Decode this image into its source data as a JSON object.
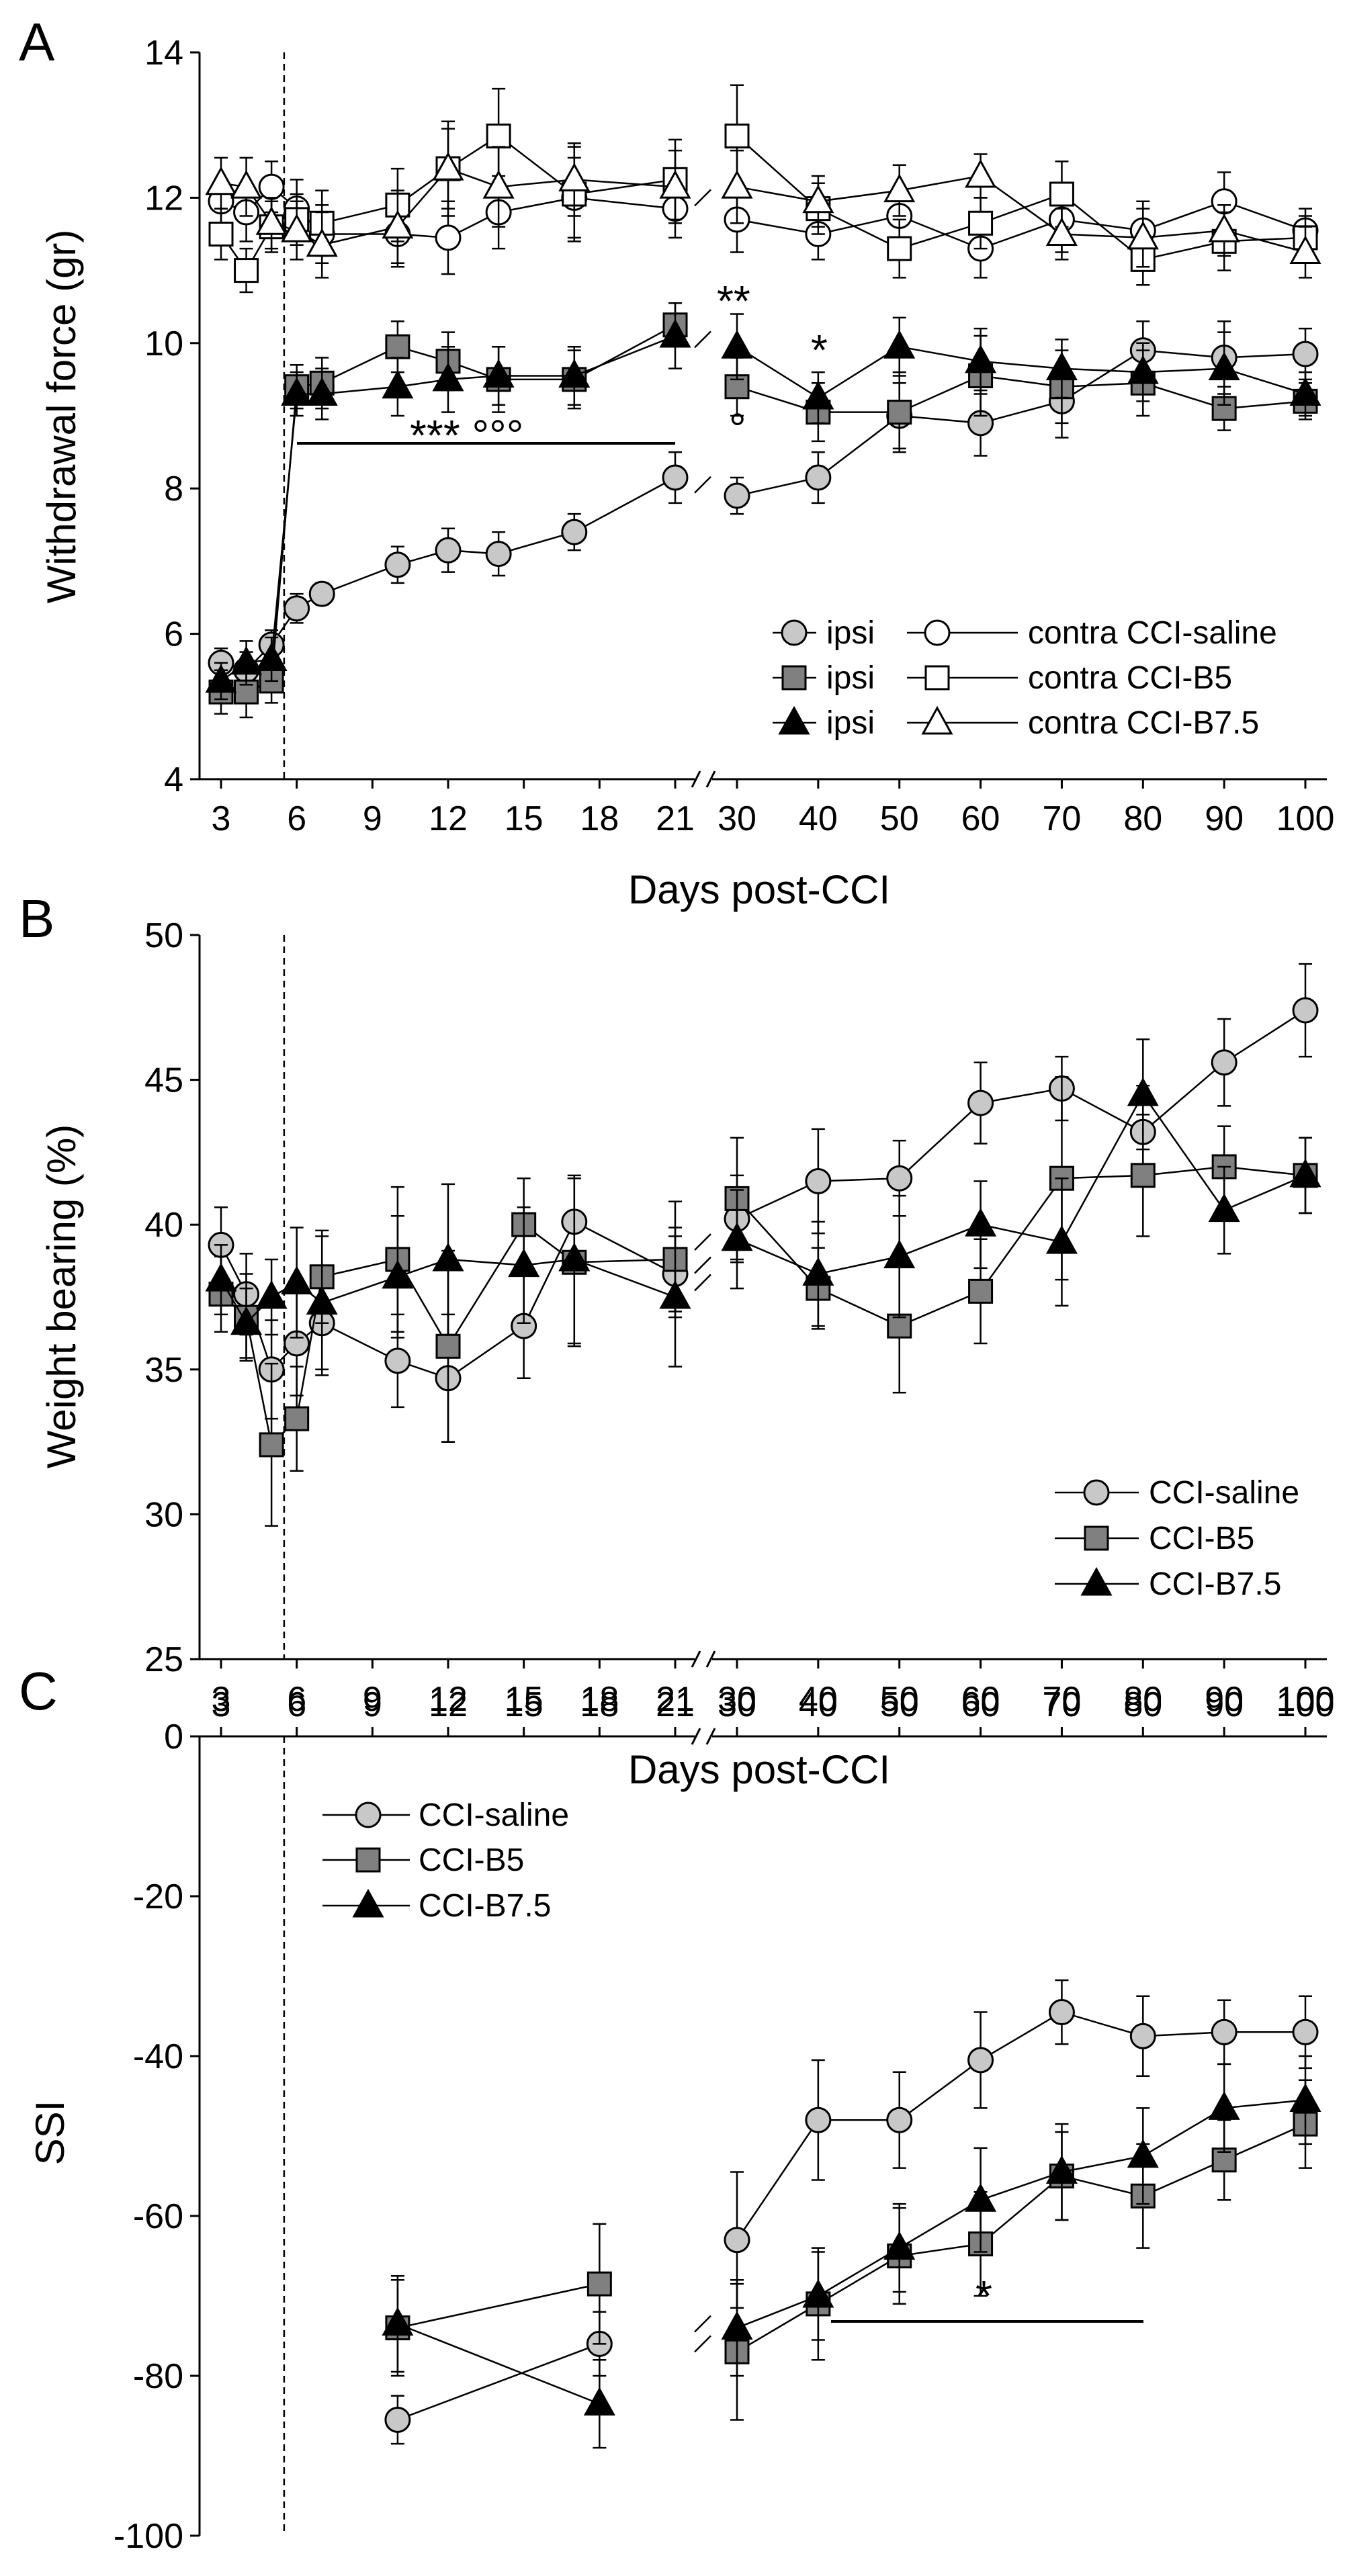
{
  "chart_data": [
    {
      "panel": "A",
      "type": "line",
      "ylabel": "Withdrawal force (gr)",
      "xlabel": "Days post-CCI",
      "ylim": [
        4,
        14
      ],
      "yticks": [
        4,
        6,
        8,
        10,
        12,
        14
      ],
      "xticks": [
        "3",
        "6",
        "9",
        "12",
        "15",
        "18",
        "21",
        "30",
        "40",
        "50",
        "60",
        "70",
        "80",
        "90",
        "100"
      ],
      "markers": {
        "ipsi_saline": "circle",
        "ipsi_b5": "square",
        "ipsi_b75": "triangle",
        "contra_saline": "circle",
        "contra_b5": "square",
        "contra_b75": "triangle"
      },
      "colors": {
        "saline": "#c8c8c8",
        "b5": "#808080",
        "b75": "#000000",
        "contra": "#ffffff"
      },
      "series": [
        {
          "key": "ipsi_saline",
          "x": [
            3,
            4,
            5,
            6,
            7,
            10,
            12,
            14,
            17,
            21,
            30,
            40,
            50,
            60,
            70,
            80,
            90,
            100
          ],
          "y": [
            5.6,
            5.5,
            5.85,
            6.35,
            6.55,
            6.95,
            7.15,
            7.1,
            7.4,
            8.15,
            7.9,
            8.15,
            9.0,
            8.9,
            9.2,
            9.9,
            9.8,
            9.85
          ],
          "err": [
            0.2,
            0.25,
            0.2,
            0.2,
            0.15,
            0.25,
            0.3,
            0.3,
            0.25,
            0.35,
            0.25,
            0.35,
            0.45,
            0.45,
            0.5,
            0.4,
            0.5,
            0.35
          ]
        },
        {
          "key": "ipsi_b5",
          "x": [
            3,
            4,
            5,
            6,
            7,
            10,
            12,
            14,
            17,
            21,
            30,
            40,
            50,
            60,
            70,
            80,
            90,
            100
          ],
          "y": [
            5.2,
            5.2,
            5.35,
            9.4,
            9.45,
            9.95,
            9.75,
            9.5,
            9.5,
            10.25,
            9.4,
            9.05,
            9.05,
            9.55,
            9.4,
            9.45,
            9.1,
            9.2
          ],
          "err": [
            0.3,
            0.35,
            0.3,
            0.3,
            0.35,
            0.35,
            0.4,
            0.45,
            0.4,
            0.3,
            0.4,
            0.4,
            0.55,
            0.55,
            0.5,
            0.45,
            0.3,
            0.25
          ]
        },
        {
          "key": "ipsi_b75",
          "x": [
            3,
            4,
            5,
            6,
            7,
            10,
            12,
            14,
            17,
            21,
            30,
            40,
            50,
            60,
            70,
            80,
            90,
            100
          ],
          "y": [
            5.35,
            5.6,
            5.65,
            9.3,
            9.3,
            9.4,
            9.5,
            9.55,
            9.55,
            10.1,
            9.95,
            9.25,
            9.95,
            9.75,
            9.65,
            9.6,
            9.65,
            9.3
          ],
          "err": [
            0.25,
            0.3,
            0.3,
            0.3,
            0.35,
            0.4,
            0.45,
            0.4,
            0.4,
            0.45,
            0.45,
            0.35,
            0.4,
            0.45,
            0.4,
            0.4,
            0.5,
            0.3
          ]
        },
        {
          "key": "contra_saline",
          "x": [
            3,
            4,
            5,
            6,
            7,
            10,
            12,
            14,
            17,
            21,
            30,
            40,
            50,
            60,
            70,
            80,
            90,
            100
          ],
          "y": [
            11.95,
            11.8,
            12.15,
            11.85,
            11.5,
            11.5,
            11.45,
            11.8,
            12.0,
            11.85,
            11.7,
            11.5,
            11.75,
            11.3,
            11.7,
            11.55,
            11.95,
            11.55
          ],
          "err": [
            0.3,
            0.4,
            0.35,
            0.4,
            0.4,
            0.45,
            0.5,
            0.5,
            0.55,
            0.4,
            0.45,
            0.35,
            0.4,
            0.4,
            0.45,
            0.4,
            0.4,
            0.3
          ]
        },
        {
          "key": "contra_b5",
          "x": [
            3,
            4,
            5,
            6,
            7,
            10,
            12,
            14,
            17,
            21,
            30,
            40,
            50,
            60,
            70,
            80,
            90,
            100
          ],
          "y": [
            11.5,
            11.0,
            11.6,
            11.7,
            11.65,
            11.9,
            12.4,
            12.85,
            12.05,
            12.25,
            12.85,
            11.85,
            11.3,
            11.65,
            12.05,
            11.15,
            11.4,
            11.45
          ],
          "err": [
            0.35,
            0.3,
            0.35,
            0.35,
            0.45,
            0.5,
            0.65,
            0.65,
            0.65,
            0.55,
            0.7,
            0.35,
            0.4,
            0.35,
            0.45,
            0.35,
            0.4,
            0.3
          ]
        },
        {
          "key": "contra_b75",
          "x": [
            3,
            4,
            5,
            6,
            7,
            10,
            12,
            14,
            17,
            21,
            30,
            40,
            50,
            60,
            70,
            80,
            90,
            100
          ],
          "y": [
            12.2,
            12.15,
            11.65,
            11.55,
            11.35,
            11.6,
            12.4,
            12.15,
            12.25,
            12.15,
            12.15,
            11.95,
            12.1,
            12.3,
            11.5,
            11.45,
            11.55,
            11.25
          ],
          "err": [
            0.35,
            0.4,
            0.35,
            0.4,
            0.45,
            0.5,
            0.55,
            0.55,
            0.5,
            0.5,
            0.5,
            0.35,
            0.35,
            0.3,
            0.35,
            0.4,
            0.35,
            0.35
          ]
        }
      ],
      "legend": [
        {
          "ipsi": "ipsi",
          "contra": "contra CCI-saline"
        },
        {
          "ipsi": "ipsi",
          "contra": "contra CCI-B5"
        },
        {
          "ipsi": "ipsi",
          "contra": "contra CCI-B7.5"
        }
      ],
      "annotations": {
        "long_bar": "*** °°°",
        "small_circle": "°",
        "double_star": "**",
        "single_star": "*"
      }
    },
    {
      "panel": "B",
      "type": "line",
      "ylabel": "Weight bearing (%)",
      "xlabel": "Days post-CCI",
      "ylim": [
        25,
        50
      ],
      "yticks": [
        25,
        30,
        35,
        40,
        45,
        50
      ],
      "xticks": [
        "3",
        "6",
        "9",
        "12",
        "15",
        "18",
        "21",
        "30",
        "40",
        "50",
        "60",
        "70",
        "80",
        "90",
        "100"
      ],
      "series": [
        {
          "key": "saline",
          "x": [
            3,
            4,
            5,
            6,
            7,
            10,
            12,
            15,
            17,
            21,
            30,
            40,
            50,
            60,
            70,
            80,
            90,
            100
          ],
          "y": [
            39.3,
            37.6,
            35.0,
            35.9,
            36.6,
            35.3,
            34.7,
            36.5,
            40.1,
            38.3,
            40.2,
            41.5,
            41.6,
            44.2,
            44.7,
            43.2,
            45.6,
            47.4
          ],
          "err": [
            1.3,
            1.4,
            1.7,
            1.8,
            1.8,
            1.6,
            2.2,
            1.8,
            1.5,
            1.3,
            1.5,
            1.8,
            1.3,
            1.4,
            1.1,
            1.6,
            1.5,
            1.6
          ]
        },
        {
          "key": "b5",
          "x": [
            3,
            4,
            5,
            6,
            7,
            10,
            12,
            15,
            17,
            21,
            30,
            40,
            50,
            60,
            70,
            80,
            90,
            100
          ],
          "y": [
            37.6,
            36.8,
            32.4,
            33.3,
            38.2,
            38.8,
            35.8,
            40.0,
            38.7,
            38.8,
            40.9,
            37.8,
            36.5,
            37.7,
            41.6,
            41.7,
            42.0,
            41.7
          ],
          "err": [
            1.3,
            1.5,
            2.8,
            1.8,
            1.6,
            2.5,
            3.3,
            1.6,
            2.9,
            2.0,
            2.1,
            1.4,
            2.3,
            1.8,
            3.5,
            2.1,
            1.4,
            1.3
          ]
        },
        {
          "key": "b75",
          "x": [
            3,
            4,
            5,
            6,
            7,
            10,
            12,
            15,
            17,
            21,
            30,
            40,
            50,
            60,
            70,
            80,
            90,
            100
          ],
          "y": [
            38.1,
            36.6,
            37.5,
            38.0,
            37.3,
            38.2,
            38.8,
            38.6,
            38.8,
            37.5,
            39.5,
            38.3,
            38.9,
            40.0,
            39.4,
            44.5,
            40.5,
            41.7
          ],
          "err": [
            1.2,
            1.2,
            1.3,
            1.9,
            2.3,
            2.1,
            2.6,
            2.0,
            2.9,
            2.4,
            1.7,
            1.8,
            2.1,
            1.5,
            2.2,
            1.9,
            1.5,
            1.3
          ]
        }
      ],
      "legend": [
        "CCI-saline",
        "CCI-B5",
        "CCI-B7.5"
      ]
    },
    {
      "panel": "C",
      "type": "line",
      "ylabel": "SSI",
      "ylim": [
        -100,
        0
      ],
      "yticks": [
        0,
        -20,
        -40,
        -60,
        -80,
        -100
      ],
      "xticks": [
        "3",
        "6",
        "9",
        "12",
        "15",
        "18",
        "21",
        "30",
        "40",
        "50",
        "60",
        "70",
        "80",
        "90",
        "100"
      ],
      "series": [
        {
          "key": "saline",
          "x": [
            10,
            18,
            30,
            40,
            50,
            60,
            70,
            80,
            90,
            100
          ],
          "y": [
            -85.5,
            -76.0,
            -63.0,
            -48.0,
            -48.0,
            -40.5,
            -34.5,
            -37.5,
            -37.0,
            -37.0
          ],
          "err": [
            3.0,
            4.0,
            8.5,
            7.5,
            6.0,
            6.0,
            4.0,
            5.0,
            4.0,
            4.5
          ]
        },
        {
          "key": "b5",
          "x": [
            10,
            18,
            30,
            40,
            50,
            60,
            70,
            80,
            90,
            100
          ],
          "y": [
            -74.0,
            -68.5,
            -77.0,
            -71.0,
            -65.0,
            -63.5,
            -55.0,
            -57.5,
            -53.0,
            -48.5
          ],
          "err": [
            6.0,
            7.5,
            8.5,
            7.0,
            6.0,
            6.5,
            5.5,
            6.5,
            5.0,
            5.5
          ]
        },
        {
          "key": "b75",
          "x": [
            10,
            18,
            30,
            40,
            50,
            60,
            70,
            80,
            90,
            100
          ],
          "y": [
            -73.5,
            -83.5,
            -74.0,
            -70.0,
            -64.0,
            -58.0,
            -54.5,
            -52.5,
            -46.5,
            -45.5
          ],
          "err": [
            6.0,
            5.5,
            6.0,
            5.5,
            5.5,
            6.5,
            6.0,
            6.0,
            5.5,
            5.5
          ]
        }
      ],
      "legend": [
        "CCI-saline",
        "CCI-B5",
        "CCI-B7.5"
      ],
      "annotations": {
        "bar_star": "*"
      }
    }
  ],
  "panels": {
    "a": "A",
    "b": "B",
    "c": "C"
  }
}
